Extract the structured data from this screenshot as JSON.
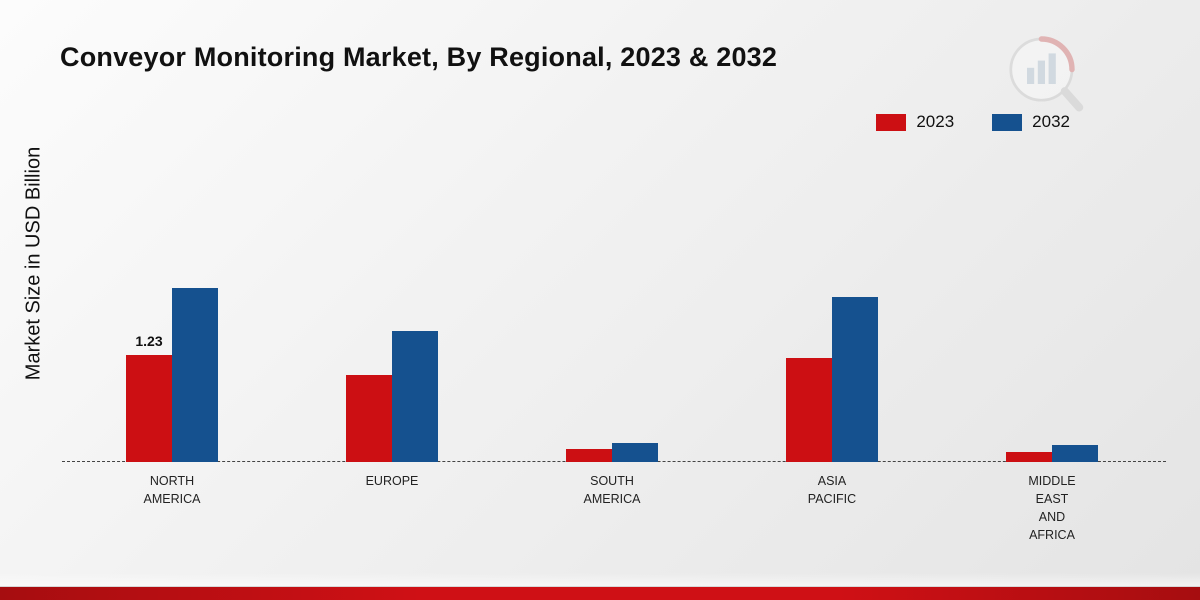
{
  "title": "Conveyor Monitoring Market, By Regional, 2023 & 2032",
  "y_axis_label": "Market Size in USD Billion",
  "colors": {
    "series_2023": "#cc0f13",
    "series_2032": "#15518f",
    "bottom_strip": "#cf1015"
  },
  "chart_data": {
    "type": "bar",
    "title": "Conveyor Monitoring Market, By Regional, 2023 & 2032",
    "xlabel": "",
    "ylabel": "Market Size in USD Billion",
    "ylim": [
      0,
      2.3
    ],
    "grid": false,
    "legend_position": "top-right",
    "categories": [
      "NORTH\nAMERICA",
      "EUROPE",
      "SOUTH\nAMERICA",
      "ASIA\nPACIFIC",
      "MIDDLE\nEAST\nAND\nAFRICA"
    ],
    "series": [
      {
        "name": "2023",
        "color": "#cc0f13",
        "values": [
          1.23,
          1.0,
          0.15,
          1.2,
          0.12
        ],
        "data_labels": [
          "1.23",
          "",
          "",
          "",
          ""
        ]
      },
      {
        "name": "2032",
        "color": "#15518f",
        "values": [
          2.0,
          1.5,
          0.22,
          1.9,
          0.2
        ],
        "data_labels": [
          "",
          "",
          "",
          "",
          ""
        ]
      }
    ]
  }
}
